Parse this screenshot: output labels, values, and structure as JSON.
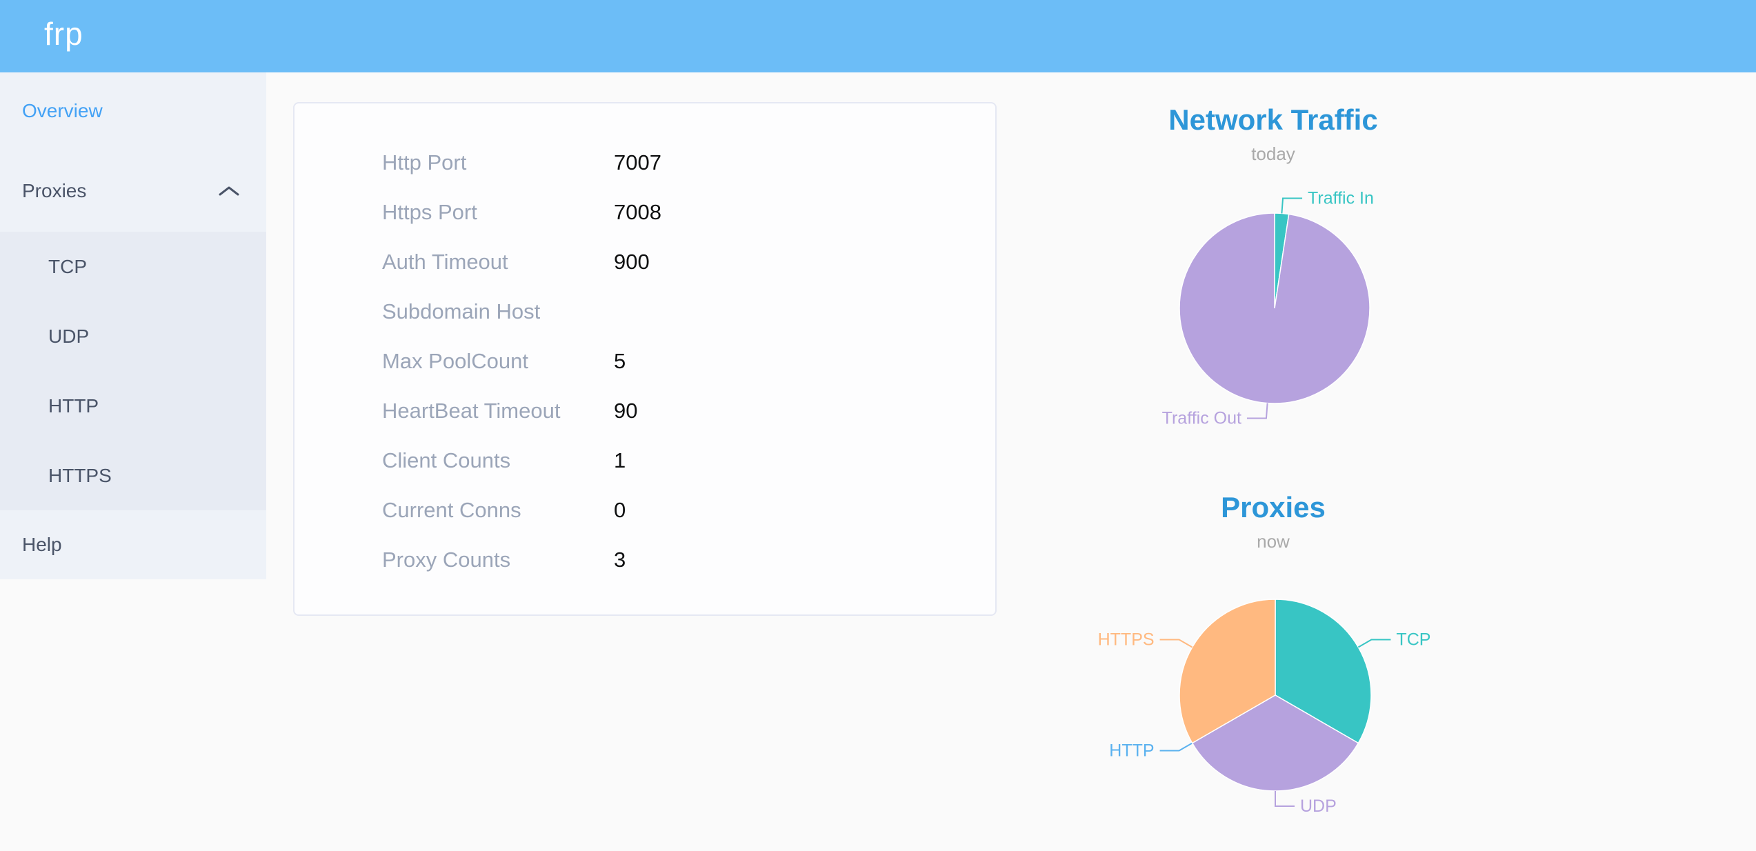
{
  "header": {
    "logo": "frp",
    "bg_color": "#6cbdf7"
  },
  "sidebar": {
    "items": [
      {
        "label": "Overview",
        "active": true
      },
      {
        "label": "Proxies",
        "expanded": true,
        "children": [
          {
            "label": "TCP"
          },
          {
            "label": "UDP"
          },
          {
            "label": "HTTP"
          },
          {
            "label": "HTTPS"
          }
        ]
      },
      {
        "label": "Help"
      }
    ],
    "active_color": "#42a1f5"
  },
  "server_info": {
    "rows": [
      {
        "label": "Http Port",
        "value": "7007"
      },
      {
        "label": "Https Port",
        "value": "7008"
      },
      {
        "label": "Auth Timeout",
        "value": "900"
      },
      {
        "label": "Subdomain Host",
        "value": ""
      },
      {
        "label": "Max PoolCount",
        "value": "5"
      },
      {
        "label": "HeartBeat Timeout",
        "value": "90"
      },
      {
        "label": "Client Counts",
        "value": "1"
      },
      {
        "label": "Current Conns",
        "value": "0"
      },
      {
        "label": "Proxy Counts",
        "value": "3"
      }
    ]
  },
  "chart_data": [
    {
      "type": "pie",
      "title": "Network Traffic",
      "subtitle": "today",
      "legend_position": "none",
      "label_style": "outside-leader-lines",
      "start_angle": "top-clockwise",
      "value_note": "slice share estimated from pie angles (percent of total)",
      "items": [
        {
          "name": "Traffic In",
          "value": 2.4,
          "color": "#38c5c4"
        },
        {
          "name": "Traffic Out",
          "value": 97.6,
          "color": "#b6a2de"
        }
      ]
    },
    {
      "type": "pie",
      "title": "Proxies",
      "subtitle": "now",
      "legend_position": "none",
      "label_style": "outside-leader-lines",
      "start_angle": "top-clockwise",
      "value_note": "proxy counts by type; HTTP slice has value 0 (label only)",
      "items": [
        {
          "name": "TCP",
          "value": 1,
          "color": "#38c5c4"
        },
        {
          "name": "UDP",
          "value": 1,
          "color": "#b6a2de"
        },
        {
          "name": "HTTP",
          "value": 0,
          "color": "#5ab1ef"
        },
        {
          "name": "HTTPS",
          "value": 1,
          "color": "#ffb980"
        }
      ]
    }
  ],
  "colors": {
    "header_bg": "#6cbdf7",
    "sidebar_bg": "#eef2f8",
    "submenu_bg": "#e7ebf3",
    "chart_title": "#2d96d8",
    "card_label": "#9ba5b8",
    "teal": "#38c5c4",
    "purple": "#b6a2de",
    "blue": "#5ab1ef",
    "orange": "#ffb980"
  }
}
